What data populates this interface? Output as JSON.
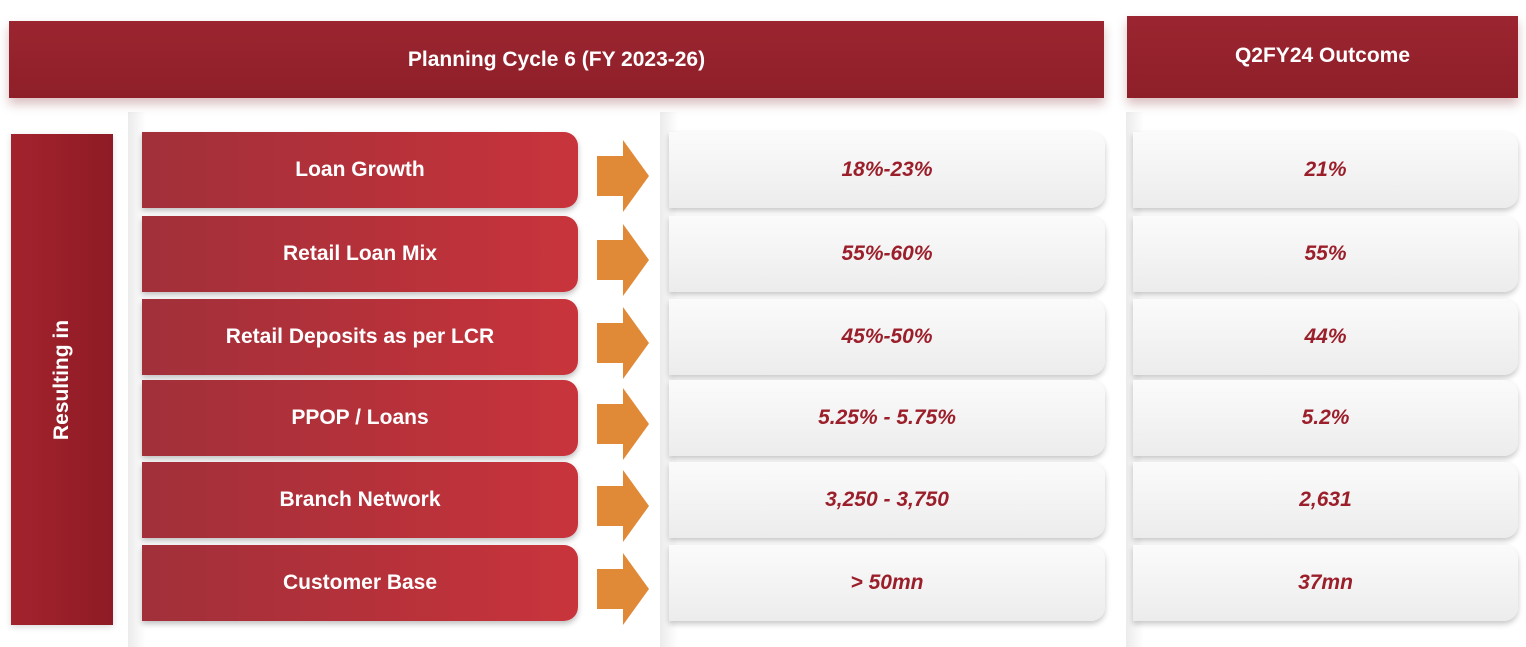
{
  "header": {
    "planning_title": "Planning Cycle 6 (FY 2023-26)",
    "outcome_title": "Q2FY24 Outcome"
  },
  "side_label": "Resulting in",
  "colors": {
    "header_red": "#921f29",
    "metric_red": "#b8313a",
    "value_text": "#9b1f2a",
    "arrow_orange": "#e08a38"
  },
  "rows": [
    {
      "metric": "Loan Growth",
      "target": "18%-23%",
      "outcome": "21%"
    },
    {
      "metric": "Retail Loan Mix",
      "target": "55%-60%",
      "outcome": "55%"
    },
    {
      "metric": "Retail Deposits as per LCR",
      "target": "45%-50%",
      "outcome": "44%"
    },
    {
      "metric": "PPOP / Loans",
      "target": "5.25% - 5.75%",
      "outcome": "5.2%"
    },
    {
      "metric": "Branch Network",
      "target": "3,250 - 3,750",
      "outcome": "2,631"
    },
    {
      "metric": "Customer Base",
      "target": "> 50mn",
      "outcome": "37mn"
    }
  ]
}
